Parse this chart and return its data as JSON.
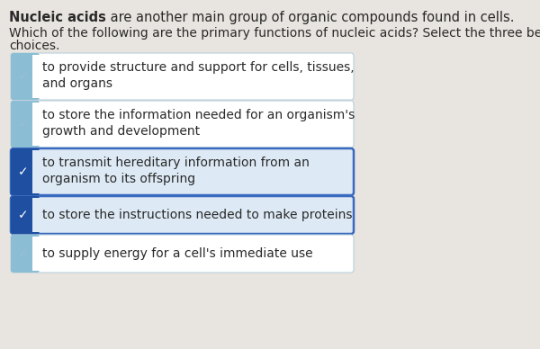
{
  "background_color": "#e8e4df",
  "header_bold": "Nucleic acids",
  "header_rest": " are another main group of organic compounds found in cells.",
  "question_line1": "Which of the following are the primary functions of nucleic acids? Select the three best",
  "question_line2": "choices.",
  "options": [
    {
      "text_line1": "to provide structure and support for cells, tissues,",
      "text_line2": "and organs",
      "selected": false
    },
    {
      "text_line1": "to store the information needed for an organism's",
      "text_line2": "growth and development",
      "selected": false
    },
    {
      "text_line1": "to transmit hereditary information from an",
      "text_line2": "organism to its offspring",
      "selected": true
    },
    {
      "text_line1": "to store the instructions needed to make proteins",
      "text_line2": "",
      "selected": true
    },
    {
      "text_line1": "to supply energy for a cell's immediate use",
      "text_line2": "",
      "selected": false
    }
  ],
  "tab_color_selected": "#1e4fa0",
  "tab_color_unselected": "#8bbdd4",
  "box_border_selected": "#3a6abf",
  "box_border_unselected": "#b8d0dc",
  "box_fill_selected": "#ddeaf5",
  "box_fill_unselected": "#ffffff",
  "check_color_white": "#ffffff",
  "check_color_light": "#9abfd4",
  "text_color": "#2a2a2a",
  "header_fontsize": 10.5,
  "question_fontsize": 10.0,
  "option_fontsize": 10.0
}
